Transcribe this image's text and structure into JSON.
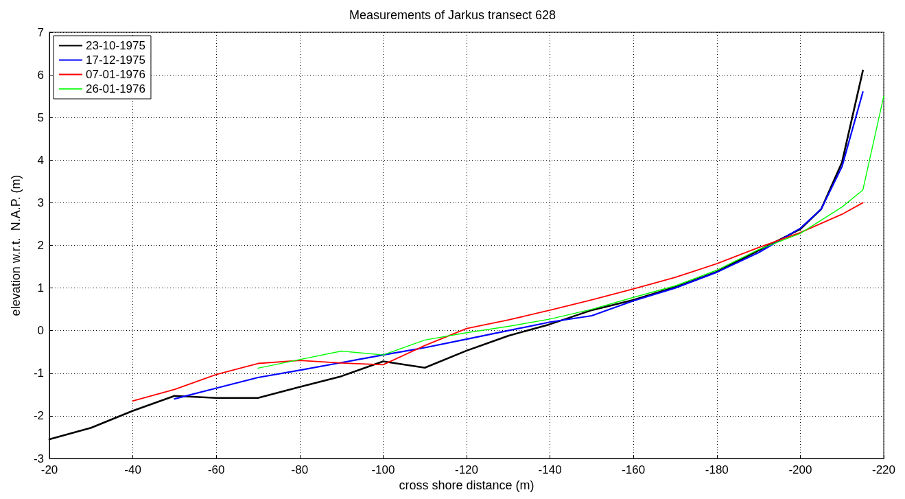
{
  "chart_data": {
    "type": "line",
    "title": "Measurements of Jarkus transect 628",
    "xlabel": "cross shore distance (m)",
    "ylabel": "elevation w.r.t.  N.A.P. (m)",
    "xlim": [
      -20,
      -220
    ],
    "xticks": [
      -20,
      -40,
      -60,
      -80,
      -100,
      -120,
      -140,
      -160,
      -180,
      -200,
      -220
    ],
    "ylim": [
      -3,
      7
    ],
    "yticks": [
      -3,
      -2,
      -1,
      0,
      1,
      2,
      3,
      4,
      5,
      6,
      7
    ],
    "grid": true,
    "legend": "top left",
    "marker": "none",
    "line_style": "solid",
    "series": [
      {
        "name": "23-10-1975",
        "color": "#000000",
        "x": [
          -20,
          -30,
          -40,
          -50,
          -60,
          -70,
          -80,
          -90,
          -100,
          -110,
          -120,
          -130,
          -140,
          -150,
          -160,
          -170,
          -180,
          -190,
          -200,
          -205,
          -210,
          -215
        ],
        "values": [
          -2.55,
          -2.28,
          -1.88,
          -1.53,
          -1.58,
          -1.58,
          -1.32,
          -1.07,
          -0.72,
          -0.87,
          -0.47,
          -0.12,
          0.15,
          0.48,
          0.72,
          1.02,
          1.38,
          1.88,
          2.38,
          2.85,
          3.95,
          6.1
        ]
      },
      {
        "name": "17-12-1975",
        "color": "#0000ff",
        "x": [
          -50,
          -60,
          -70,
          -80,
          -90,
          -100,
          -110,
          -120,
          -130,
          -140,
          -150,
          -160,
          -170,
          -180,
          -190,
          -200,
          -205,
          -210,
          -215
        ],
        "values": [
          -1.6,
          -1.35,
          -1.1,
          -0.93,
          -0.75,
          -0.57,
          -0.4,
          -0.2,
          0.0,
          0.2,
          0.35,
          0.7,
          1.0,
          1.37,
          1.83,
          2.4,
          2.85,
          3.85,
          5.6
        ]
      },
      {
        "name": "07-01-1976",
        "color": "#ff0000",
        "x": [
          -40,
          -50,
          -60,
          -70,
          -80,
          -90,
          -100,
          -110,
          -120,
          -130,
          -140,
          -150,
          -160,
          -170,
          -180,
          -190,
          -200,
          -210,
          -215
        ],
        "values": [
          -1.65,
          -1.38,
          -1.03,
          -0.77,
          -0.7,
          -0.76,
          -0.8,
          -0.35,
          0.05,
          0.25,
          0.48,
          0.72,
          0.98,
          1.25,
          1.57,
          1.95,
          2.3,
          2.73,
          3.0
        ]
      },
      {
        "name": "26-01-1976",
        "color": "#00ff00",
        "x": [
          -70,
          -80,
          -90,
          -100,
          -110,
          -120,
          -130,
          -140,
          -150,
          -160,
          -170,
          -180,
          -190,
          -200,
          -210,
          -215,
          -220
        ],
        "values": [
          -0.88,
          -0.68,
          -0.48,
          -0.57,
          -0.22,
          -0.05,
          0.1,
          0.27,
          0.5,
          0.78,
          1.05,
          1.42,
          1.9,
          2.28,
          2.9,
          3.3,
          5.5
        ]
      }
    ]
  }
}
